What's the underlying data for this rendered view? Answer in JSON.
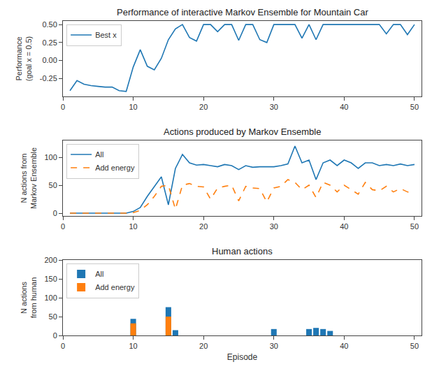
{
  "chart_data": [
    {
      "type": "line",
      "title": "Performance of interactive Markov Ensemble for Mountain Car",
      "ylabel": "Performance\n(goal x = 0.5)",
      "x": [
        1,
        2,
        3,
        4,
        5,
        6,
        7,
        8,
        9,
        10,
        11,
        12,
        13,
        14,
        15,
        16,
        17,
        18,
        19,
        20,
        21,
        22,
        23,
        24,
        25,
        26,
        27,
        28,
        29,
        30,
        31,
        32,
        33,
        34,
        35,
        36,
        37,
        38,
        39,
        40,
        41,
        42,
        43,
        44,
        45,
        46,
        47,
        48,
        49,
        50
      ],
      "series": [
        {
          "name": "Best x",
          "color": "#1f77b4",
          "line_style": "solid",
          "values": [
            -0.42,
            -0.28,
            -0.33,
            -0.35,
            -0.36,
            -0.37,
            -0.37,
            -0.42,
            -0.43,
            -0.09,
            0.15,
            -0.08,
            -0.13,
            0.03,
            0.29,
            0.44,
            0.5,
            0.32,
            0.27,
            0.5,
            0.5,
            0.4,
            0.5,
            0.5,
            0.28,
            0.5,
            0.5,
            0.29,
            0.25,
            0.5,
            0.5,
            0.5,
            0.5,
            0.31,
            0.5,
            0.29,
            0.5,
            0.5,
            0.5,
            0.5,
            0.5,
            0.5,
            0.5,
            0.5,
            0.5,
            0.37,
            0.5,
            0.5,
            0.36,
            0.5
          ]
        }
      ],
      "xlim": [
        0,
        51
      ],
      "xticks": [
        0,
        10,
        20,
        30,
        40,
        50
      ],
      "ylim": [
        -0.5,
        0.55
      ],
      "yticks": [
        -0.25,
        {
          "value": 0,
          "label": "0.00"
        },
        0.25,
        {
          "value": 0.5,
          "label": "0.50"
        }
      ],
      "grid": false,
      "legend": "upper left"
    },
    {
      "type": "line",
      "title": "Actions produced by Markov Ensemble",
      "ylabel": "N actions from\nMarkov Ensemble",
      "x": [
        1,
        2,
        3,
        4,
        5,
        6,
        7,
        8,
        9,
        10,
        11,
        12,
        13,
        14,
        15,
        16,
        17,
        18,
        19,
        20,
        21,
        22,
        23,
        24,
        25,
        26,
        27,
        28,
        29,
        30,
        31,
        32,
        33,
        34,
        35,
        36,
        37,
        38,
        39,
        40,
        41,
        42,
        43,
        44,
        45,
        46,
        47,
        48,
        49,
        50
      ],
      "series": [
        {
          "name": "All",
          "color": "#1f77b4",
          "line_style": "solid",
          "values": [
            0,
            0,
            0,
            0,
            0,
            0,
            0,
            0,
            0,
            3,
            10,
            30,
            47,
            65,
            15,
            80,
            105,
            90,
            86,
            87,
            85,
            83,
            87,
            85,
            78,
            85,
            82,
            83,
            83,
            83,
            85,
            88,
            120,
            90,
            95,
            60,
            90,
            95,
            85,
            95,
            90,
            80,
            90,
            90,
            85,
            87,
            85,
            88,
            85,
            87
          ]
        },
        {
          "name": "Add energy",
          "color": "#ff7f0e",
          "line_style": "dashed",
          "values": [
            0,
            0,
            0,
            0,
            0,
            0,
            0,
            0,
            0,
            1,
            5,
            15,
            30,
            48,
            50,
            7,
            50,
            53,
            48,
            47,
            25,
            45,
            48,
            50,
            22,
            48,
            45,
            44,
            20,
            45,
            48,
            60,
            55,
            42,
            50,
            28,
            55,
            50,
            38,
            50,
            42,
            34,
            55,
            42,
            40,
            48,
            38,
            44,
            38,
            35
          ]
        }
      ],
      "xlim": [
        0,
        51
      ],
      "xticks": [
        0,
        10,
        20,
        30,
        40,
        50
      ],
      "ylim": [
        -5,
        130
      ],
      "yticks": [
        0,
        50,
        100
      ],
      "grid": false,
      "legend": "upper left"
    },
    {
      "type": "bar",
      "title": "Human actions",
      "ylabel": "N actions\nfrom human",
      "xlabel": "Episode",
      "x": [
        10,
        15,
        16,
        30,
        35,
        36,
        37,
        38
      ],
      "series": [
        {
          "name": "All",
          "color": "#1f77b4",
          "values": [
            44,
            75,
            14,
            17,
            17,
            20,
            17,
            12
          ]
        },
        {
          "name": "Add energy",
          "color": "#ff7f0e",
          "values": [
            32,
            50,
            0,
            0,
            0,
            0,
            0,
            0
          ]
        }
      ],
      "stacked": false,
      "xlim": [
        0,
        51
      ],
      "xticks": [
        0,
        10,
        20,
        30,
        40,
        50
      ],
      "ylim": [
        0,
        200
      ],
      "yticks": [
        0,
        50,
        100,
        150,
        200
      ],
      "grid": false,
      "legend": "upper left"
    }
  ]
}
